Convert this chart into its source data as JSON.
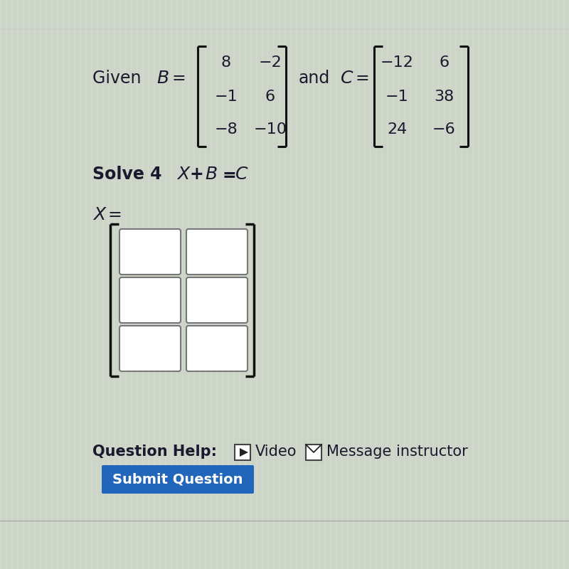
{
  "background_color": "#cdd5c8",
  "text_color": "#1a1a2e",
  "B_matrix": [
    [
      8,
      -2
    ],
    [
      -1,
      6
    ],
    [
      -8,
      -10
    ]
  ],
  "C_matrix": [
    [
      -12,
      6
    ],
    [
      -1,
      38
    ],
    [
      24,
      -6
    ]
  ],
  "submit_text": "Submit Question",
  "submit_bg": "#2266bb",
  "submit_text_color": "#ffffff",
  "grid_rows": 3,
  "grid_cols": 2
}
